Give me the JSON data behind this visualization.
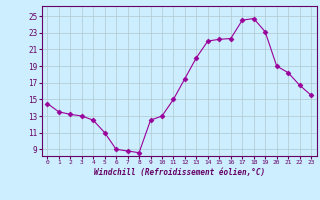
{
  "x": [
    0,
    1,
    2,
    3,
    4,
    5,
    6,
    7,
    8,
    9,
    10,
    11,
    12,
    13,
    14,
    15,
    16,
    17,
    18,
    19,
    20,
    21,
    22,
    23
  ],
  "y": [
    14.5,
    13.5,
    13.2,
    13.0,
    12.5,
    11.0,
    9.0,
    8.8,
    8.6,
    12.5,
    13.0,
    15.0,
    17.5,
    20.0,
    22.0,
    22.2,
    22.3,
    24.5,
    24.7,
    23.1,
    19.0,
    18.2,
    16.7,
    15.5
  ],
  "line_color": "#990099",
  "marker": "D",
  "marker_size": 2.5,
  "bg_color": "#cceeff",
  "grid_color": "#b0c8d0",
  "xlabel": "Windchill (Refroidissement éolien,°C)",
  "ylabel_ticks": [
    9,
    11,
    13,
    15,
    17,
    19,
    21,
    23,
    25
  ],
  "xtick_labels": [
    "0",
    "1",
    "2",
    "3",
    "4",
    "5",
    "6",
    "7",
    "8",
    "9",
    "10",
    "11",
    "12",
    "13",
    "14",
    "15",
    "16",
    "17",
    "18",
    "19",
    "20",
    "21",
    "22",
    "23"
  ],
  "ylim": [
    8.2,
    26.2
  ],
  "xlim": [
    -0.5,
    23.5
  ],
  "tick_color": "#660066",
  "label_color": "#660066",
  "axis_color": "#660066"
}
